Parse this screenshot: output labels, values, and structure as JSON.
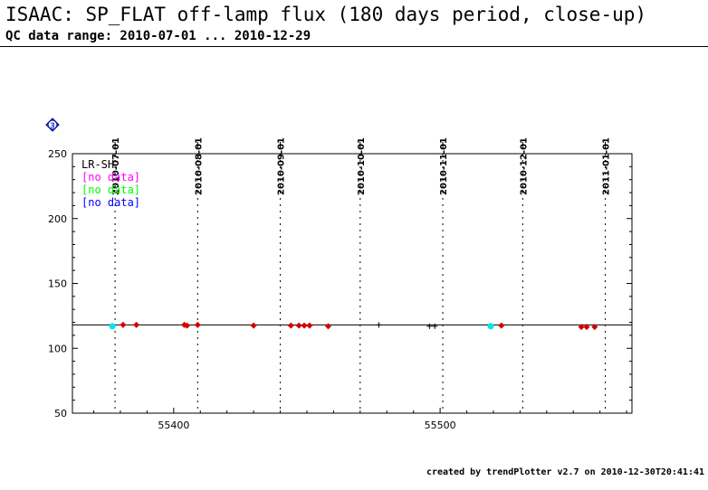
{
  "header": {
    "title": "ISAAC: SP_FLAT off-lamp flux (180 days period, close-up)",
    "subtitle": "QC data range: 2010-07-01 ... 2010-12-29"
  },
  "footer": {
    "text": "created by trendPlotter v2.7 on 2010-12-30T20:41:41"
  },
  "badge": {
    "label": "3",
    "color": "#1f3fd6"
  },
  "chart_data": {
    "type": "scatter",
    "title": "",
    "xlabel": "",
    "ylabel": "",
    "xlim": [
      55362,
      55572
    ],
    "ylim": [
      50,
      250
    ],
    "x_ticks": [
      55400,
      55500
    ],
    "y_ticks": [
      50,
      100,
      150,
      200,
      250
    ],
    "date_markers": [
      {
        "x": 55378,
        "label": "2010-07-01"
      },
      {
        "x": 55409,
        "label": "2010-08-01"
      },
      {
        "x": 55440,
        "label": "2010-09-01"
      },
      {
        "x": 55470,
        "label": "2010-10-01"
      },
      {
        "x": 55501,
        "label": "2010-11-01"
      },
      {
        "x": 55531,
        "label": "2010-12-01"
      },
      {
        "x": 55562,
        "label": "2011-01-01"
      }
    ],
    "reference_line": 118,
    "legend": [
      {
        "label": "LR-SH",
        "color": "#000000"
      },
      {
        "label": "[no data]",
        "color": "#ff00ff"
      },
      {
        "label": "[no data]",
        "color": "#00ff00"
      },
      {
        "label": "[no data]",
        "color": "#0000ff"
      }
    ],
    "series": [
      {
        "marker": "diamond",
        "color": "#d40000",
        "points": [
          {
            "x": 55381,
            "y": 118
          },
          {
            "x": 55386,
            "y": 118
          },
          {
            "x": 55404,
            "y": 118
          },
          {
            "x": 55405,
            "y": 117.5
          },
          {
            "x": 55409,
            "y": 118
          },
          {
            "x": 55430,
            "y": 117.5
          },
          {
            "x": 55444,
            "y": 117.5
          },
          {
            "x": 55447,
            "y": 117.5
          },
          {
            "x": 55449,
            "y": 117.5
          },
          {
            "x": 55451,
            "y": 117.5
          },
          {
            "x": 55458,
            "y": 117
          },
          {
            "x": 55523,
            "y": 117.5
          },
          {
            "x": 55553,
            "y": 116.5
          },
          {
            "x": 55555,
            "y": 116.5
          },
          {
            "x": 55558,
            "y": 116.5
          }
        ]
      },
      {
        "marker": "circle",
        "color": "#00e5ee",
        "points": [
          {
            "x": 55377,
            "y": 117
          },
          {
            "x": 55519,
            "y": 117
          }
        ]
      },
      {
        "marker": "plus",
        "color": "#000000",
        "points": [
          {
            "x": 55477,
            "y": 118
          },
          {
            "x": 55496,
            "y": 117
          },
          {
            "x": 55498,
            "y": 117
          }
        ]
      }
    ]
  }
}
